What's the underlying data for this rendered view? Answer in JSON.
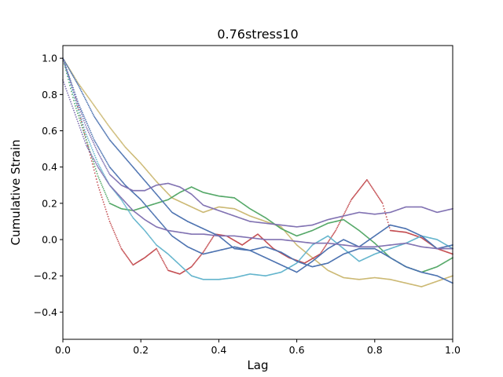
{
  "chart_data": {
    "type": "scatter",
    "title": "0.76stress10",
    "xlabel": "Lag",
    "ylabel": "Cumulative Strain",
    "xlim": [
      0.0,
      1.0
    ],
    "ylim": [
      -0.55,
      1.07
    ],
    "x_ticks": [
      0.0,
      0.2,
      0.4,
      0.6,
      0.8,
      1.0
    ],
    "x_tick_labels": [
      "0.0",
      "0.2",
      "0.4",
      "0.6",
      "0.8",
      "1.0"
    ],
    "y_ticks": [
      -0.4,
      -0.2,
      0.0,
      0.2,
      0.4,
      0.6,
      0.8,
      1.0
    ],
    "y_tick_labels": [
      "−0.4",
      "−0.2",
      "0.0",
      "0.2",
      "0.4",
      "0.6",
      "0.8",
      "1.0"
    ],
    "grid": false,
    "legend": "none",
    "series": [
      {
        "color": "#ccb974",
        "points": [
          [
            0.0,
            1.0
          ],
          [
            0.04,
            0.86
          ],
          [
            0.08,
            0.74
          ],
          [
            0.12,
            0.62
          ],
          [
            0.16,
            0.51
          ],
          [
            0.2,
            0.42
          ],
          [
            0.24,
            0.32
          ],
          [
            0.28,
            0.23
          ],
          [
            0.32,
            0.19
          ],
          [
            0.36,
            0.15
          ],
          [
            0.4,
            0.18
          ],
          [
            0.44,
            0.17
          ],
          [
            0.48,
            0.13
          ],
          [
            0.52,
            0.1
          ],
          [
            0.56,
            0.07
          ],
          [
            0.6,
            -0.03
          ],
          [
            0.64,
            -0.1
          ],
          [
            0.68,
            -0.17
          ],
          [
            0.72,
            -0.21
          ],
          [
            0.76,
            -0.22
          ],
          [
            0.8,
            -0.21
          ],
          [
            0.84,
            -0.22
          ],
          [
            0.88,
            -0.24
          ],
          [
            0.92,
            -0.26
          ],
          [
            0.96,
            -0.23
          ],
          [
            1.0,
            -0.2
          ]
        ]
      },
      {
        "color": "#c44e52",
        "points": [
          [
            0.0,
            1.0
          ],
          [
            0.03,
            0.8
          ],
          [
            0.06,
            0.55
          ],
          [
            0.09,
            0.3
          ],
          [
            0.12,
            0.1
          ],
          [
            0.15,
            -0.05
          ],
          [
            0.18,
            -0.14
          ],
          [
            0.21,
            -0.1
          ],
          [
            0.24,
            -0.05
          ],
          [
            0.27,
            -0.17
          ],
          [
            0.3,
            -0.19
          ],
          [
            0.33,
            -0.15
          ],
          [
            0.36,
            -0.07
          ],
          [
            0.39,
            0.03
          ],
          [
            0.42,
            0.02
          ],
          [
            0.46,
            -0.03
          ],
          [
            0.5,
            0.03
          ],
          [
            0.54,
            -0.05
          ],
          [
            0.58,
            -0.1
          ],
          [
            0.62,
            -0.13
          ],
          [
            0.66,
            -0.08
          ],
          [
            0.7,
            0.05
          ],
          [
            0.74,
            0.22
          ],
          [
            0.78,
            0.33
          ],
          [
            0.82,
            0.2
          ],
          [
            0.84,
            0.05
          ],
          [
            0.88,
            0.04
          ],
          [
            0.92,
            0.01
          ],
          [
            0.96,
            -0.05
          ],
          [
            1.0,
            -0.08
          ]
        ]
      },
      {
        "color": "#55a868",
        "points": [
          [
            0.0,
            1.0
          ],
          [
            0.03,
            0.75
          ],
          [
            0.06,
            0.55
          ],
          [
            0.09,
            0.35
          ],
          [
            0.12,
            0.2
          ],
          [
            0.15,
            0.17
          ],
          [
            0.18,
            0.16
          ],
          [
            0.21,
            0.18
          ],
          [
            0.24,
            0.2
          ],
          [
            0.27,
            0.22
          ],
          [
            0.3,
            0.26
          ],
          [
            0.33,
            0.29
          ],
          [
            0.36,
            0.26
          ],
          [
            0.4,
            0.24
          ],
          [
            0.44,
            0.23
          ],
          [
            0.48,
            0.17
          ],
          [
            0.52,
            0.12
          ],
          [
            0.56,
            0.06
          ],
          [
            0.6,
            0.02
          ],
          [
            0.64,
            0.05
          ],
          [
            0.68,
            0.09
          ],
          [
            0.72,
            0.11
          ],
          [
            0.76,
            0.05
          ],
          [
            0.8,
            -0.02
          ],
          [
            0.84,
            -0.1
          ],
          [
            0.88,
            -0.15
          ],
          [
            0.92,
            -0.18
          ],
          [
            0.96,
            -0.15
          ],
          [
            1.0,
            -0.1
          ]
        ]
      },
      {
        "color": "#64b5cd",
        "points": [
          [
            0.0,
            1.0
          ],
          [
            0.03,
            0.78
          ],
          [
            0.06,
            0.58
          ],
          [
            0.09,
            0.42
          ],
          [
            0.12,
            0.3
          ],
          [
            0.15,
            0.22
          ],
          [
            0.18,
            0.12
          ],
          [
            0.21,
            0.05
          ],
          [
            0.24,
            -0.03
          ],
          [
            0.27,
            -0.08
          ],
          [
            0.3,
            -0.14
          ],
          [
            0.33,
            -0.2
          ],
          [
            0.36,
            -0.22
          ],
          [
            0.4,
            -0.22
          ],
          [
            0.44,
            -0.21
          ],
          [
            0.48,
            -0.19
          ],
          [
            0.52,
            -0.2
          ],
          [
            0.56,
            -0.18
          ],
          [
            0.6,
            -0.13
          ],
          [
            0.64,
            -0.03
          ],
          [
            0.68,
            0.02
          ],
          [
            0.72,
            -0.05
          ],
          [
            0.76,
            -0.12
          ],
          [
            0.8,
            -0.08
          ],
          [
            0.84,
            -0.05
          ],
          [
            0.88,
            -0.02
          ],
          [
            0.92,
            0.02
          ],
          [
            0.96,
            0.0
          ],
          [
            1.0,
            -0.05
          ]
        ]
      },
      {
        "color": "#4c72b0",
        "points": [
          [
            0.0,
            1.0
          ],
          [
            0.04,
            0.75
          ],
          [
            0.08,
            0.55
          ],
          [
            0.12,
            0.4
          ],
          [
            0.16,
            0.3
          ],
          [
            0.2,
            0.22
          ],
          [
            0.24,
            0.12
          ],
          [
            0.28,
            0.02
          ],
          [
            0.32,
            -0.04
          ],
          [
            0.36,
            -0.08
          ],
          [
            0.4,
            -0.06
          ],
          [
            0.44,
            -0.04
          ],
          [
            0.48,
            -0.06
          ],
          [
            0.52,
            -0.1
          ],
          [
            0.56,
            -0.14
          ],
          [
            0.6,
            -0.18
          ],
          [
            0.64,
            -0.12
          ],
          [
            0.68,
            -0.05
          ],
          [
            0.72,
            0.0
          ],
          [
            0.76,
            -0.04
          ],
          [
            0.8,
            0.02
          ],
          [
            0.84,
            0.08
          ],
          [
            0.88,
            0.06
          ],
          [
            0.92,
            0.02
          ],
          [
            0.96,
            -0.05
          ],
          [
            1.0,
            -0.03
          ]
        ]
      },
      {
        "color": "#4c72b0",
        "points": [
          [
            0.0,
            1.0
          ],
          [
            0.04,
            0.85
          ],
          [
            0.08,
            0.68
          ],
          [
            0.12,
            0.55
          ],
          [
            0.16,
            0.45
          ],
          [
            0.2,
            0.35
          ],
          [
            0.24,
            0.25
          ],
          [
            0.28,
            0.15
          ],
          [
            0.32,
            0.1
          ],
          [
            0.36,
            0.06
          ],
          [
            0.4,
            0.02
          ],
          [
            0.44,
            -0.05
          ],
          [
            0.48,
            -0.06
          ],
          [
            0.52,
            -0.04
          ],
          [
            0.56,
            -0.07
          ],
          [
            0.6,
            -0.12
          ],
          [
            0.64,
            -0.15
          ],
          [
            0.68,
            -0.13
          ],
          [
            0.72,
            -0.08
          ],
          [
            0.76,
            -0.05
          ],
          [
            0.8,
            -0.05
          ],
          [
            0.84,
            -0.1
          ],
          [
            0.88,
            -0.15
          ],
          [
            0.92,
            -0.18
          ],
          [
            0.96,
            -0.2
          ],
          [
            1.0,
            -0.24
          ]
        ]
      },
      {
        "color": "#8172b2",
        "points": [
          [
            0.0,
            1.0
          ],
          [
            0.03,
            0.8
          ],
          [
            0.06,
            0.62
          ],
          [
            0.09,
            0.48
          ],
          [
            0.12,
            0.36
          ],
          [
            0.15,
            0.3
          ],
          [
            0.18,
            0.27
          ],
          [
            0.21,
            0.27
          ],
          [
            0.24,
            0.3
          ],
          [
            0.27,
            0.31
          ],
          [
            0.3,
            0.29
          ],
          [
            0.33,
            0.25
          ],
          [
            0.36,
            0.19
          ],
          [
            0.4,
            0.16
          ],
          [
            0.44,
            0.13
          ],
          [
            0.48,
            0.1
          ],
          [
            0.52,
            0.09
          ],
          [
            0.56,
            0.08
          ],
          [
            0.6,
            0.07
          ],
          [
            0.64,
            0.08
          ],
          [
            0.68,
            0.11
          ],
          [
            0.72,
            0.13
          ],
          [
            0.76,
            0.15
          ],
          [
            0.8,
            0.14
          ],
          [
            0.84,
            0.15
          ],
          [
            0.88,
            0.18
          ],
          [
            0.92,
            0.18
          ],
          [
            0.96,
            0.15
          ],
          [
            1.0,
            0.17
          ]
        ]
      },
      {
        "color": "#8172b2",
        "points": [
          [
            0.0,
            0.88
          ],
          [
            0.03,
            0.7
          ],
          [
            0.06,
            0.52
          ],
          [
            0.09,
            0.4
          ],
          [
            0.12,
            0.3
          ],
          [
            0.15,
            0.23
          ],
          [
            0.18,
            0.16
          ],
          [
            0.21,
            0.11
          ],
          [
            0.24,
            0.07
          ],
          [
            0.27,
            0.05
          ],
          [
            0.3,
            0.04
          ],
          [
            0.33,
            0.03
          ],
          [
            0.36,
            0.03
          ],
          [
            0.4,
            0.02
          ],
          [
            0.44,
            0.02
          ],
          [
            0.48,
            0.01
          ],
          [
            0.52,
            0.0
          ],
          [
            0.56,
            0.0
          ],
          [
            0.6,
            -0.01
          ],
          [
            0.64,
            -0.02
          ],
          [
            0.68,
            -0.02
          ],
          [
            0.72,
            -0.03
          ],
          [
            0.76,
            -0.04
          ],
          [
            0.8,
            -0.04
          ],
          [
            0.84,
            -0.03
          ],
          [
            0.88,
            -0.02
          ],
          [
            0.92,
            -0.04
          ],
          [
            0.96,
            -0.05
          ],
          [
            1.0,
            -0.05
          ]
        ]
      }
    ]
  }
}
